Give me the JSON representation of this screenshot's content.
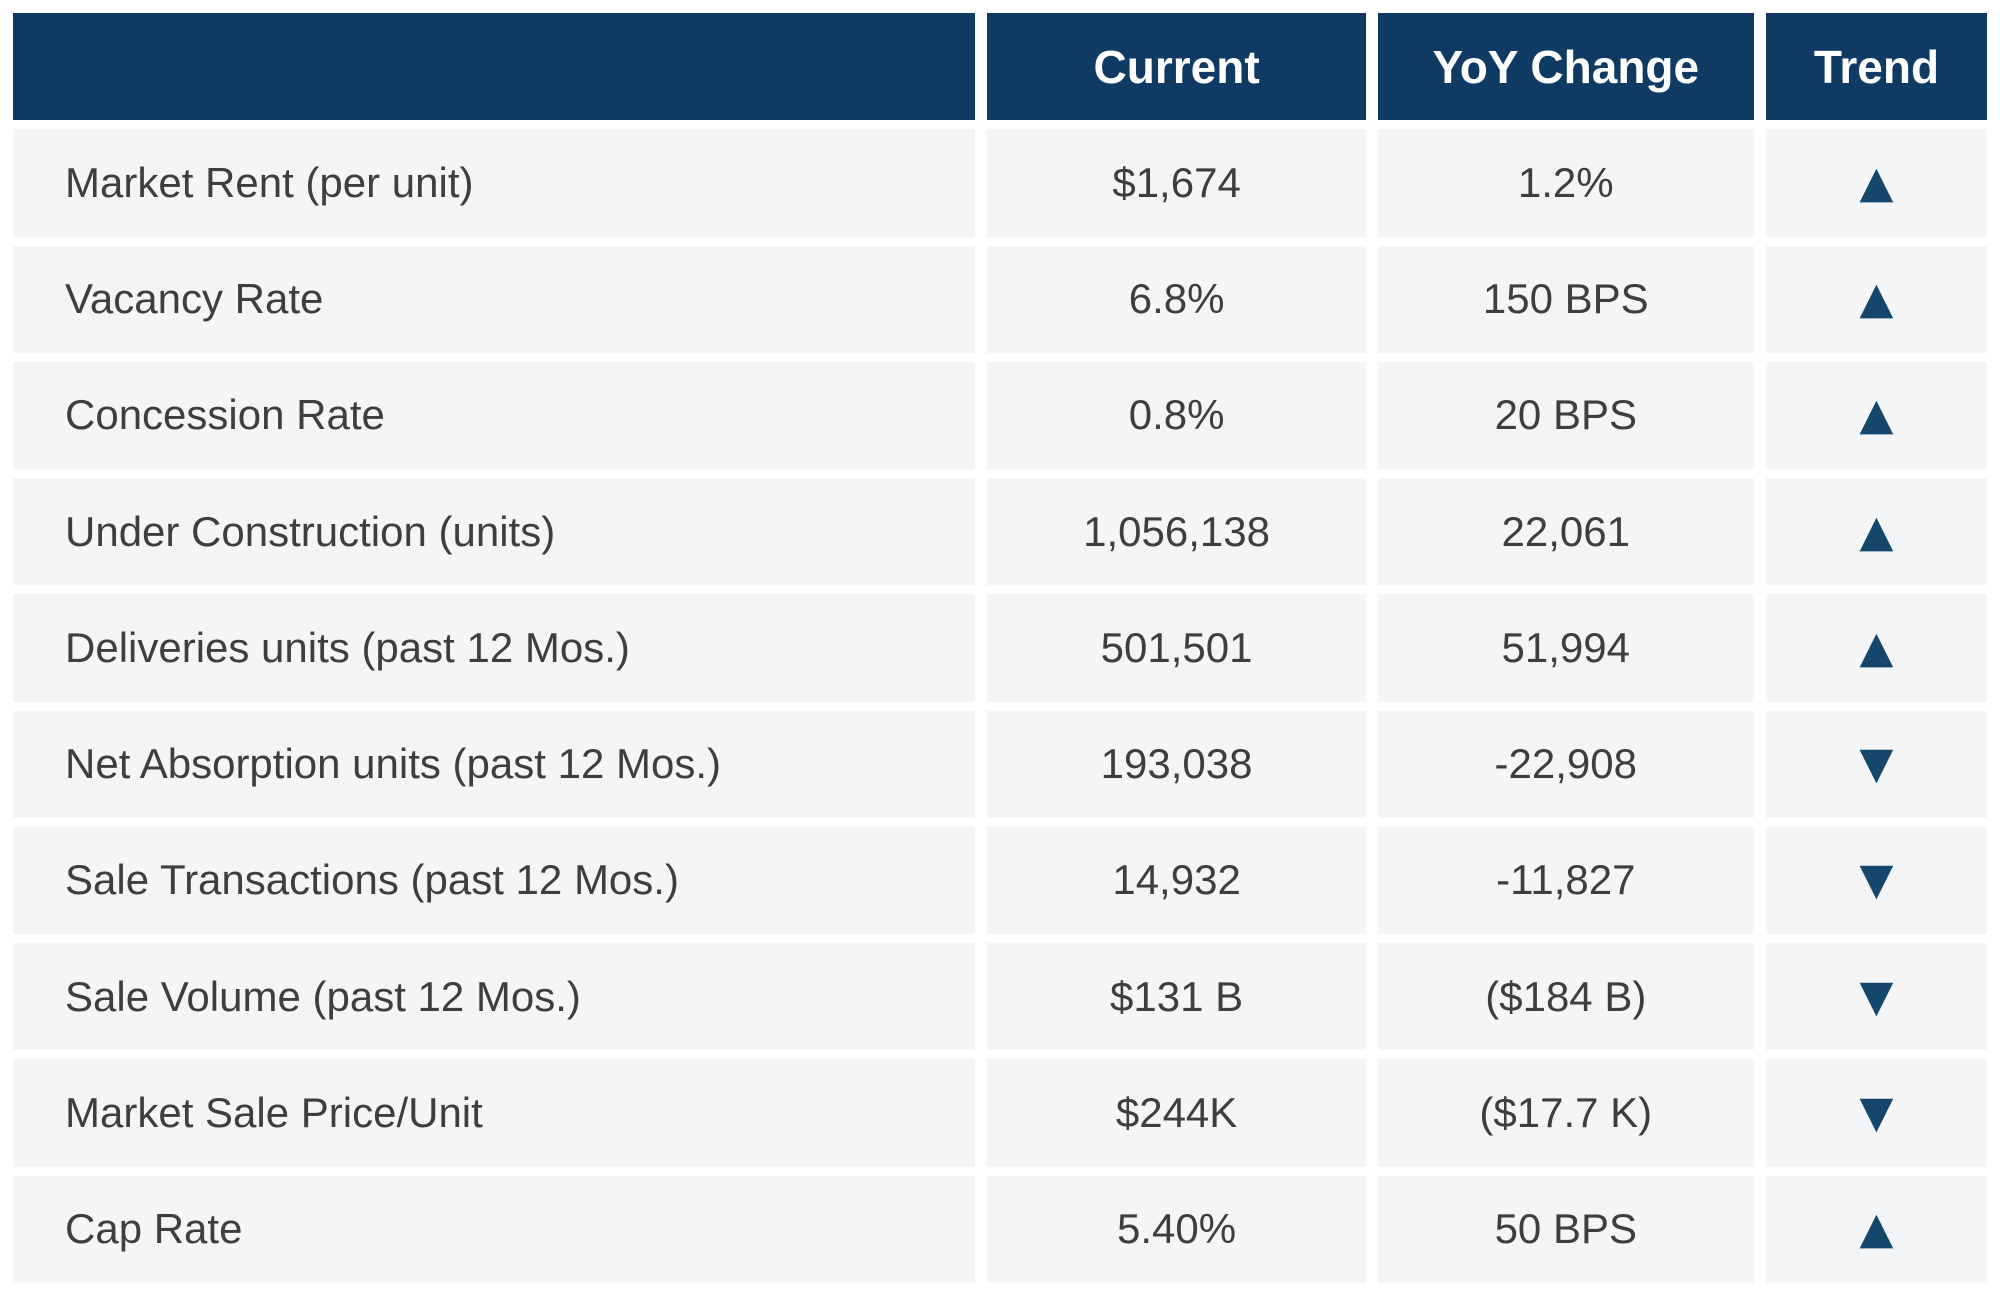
{
  "chart_data": {
    "type": "table",
    "columns": {
      "metric": "",
      "current": "Current",
      "yoy": "YoY Change",
      "trend": "Trend"
    },
    "rows": [
      {
        "label": "Market Rent (per unit)",
        "current": "$1,674",
        "yoy": "1.2%",
        "trend": "up",
        "trend_icon": "▲"
      },
      {
        "label": "Vacancy Rate",
        "current": "6.8%",
        "yoy": "150 BPS",
        "trend": "up",
        "trend_icon": "▲"
      },
      {
        "label": "Concession Rate",
        "current": "0.8%",
        "yoy": "20 BPS",
        "trend": "up",
        "trend_icon": "▲"
      },
      {
        "label": "Under Construction (units)",
        "current": "1,056,138",
        "yoy": "22,061",
        "trend": "up",
        "trend_icon": "▲"
      },
      {
        "label": "Deliveries units (past 12 Mos.)",
        "current": "501,501",
        "yoy": "51,994",
        "trend": "up",
        "trend_icon": "▲"
      },
      {
        "label": "Net Absorption units (past 12 Mos.)",
        "current": "193,038",
        "yoy": "-22,908",
        "trend": "down",
        "trend_icon": "▼"
      },
      {
        "label": "Sale Transactions (past 12 Mos.)",
        "current": "14,932",
        "yoy": "-11,827",
        "trend": "down",
        "trend_icon": "▼"
      },
      {
        "label": "Sale Volume (past 12 Mos.)",
        "current": "$131 B",
        "yoy": "($184 B)",
        "trend": "down",
        "trend_icon": "▼"
      },
      {
        "label": "Market Sale Price/Unit",
        "current": "$244K",
        "yoy": "($17.7 K)",
        "trend": "down",
        "trend_icon": "▼"
      },
      {
        "label": "Cap Rate",
        "current": "5.40%",
        "yoy": "50 BPS",
        "trend": "up",
        "trend_icon": "▲"
      }
    ]
  },
  "colors": {
    "header_bg": "#0E3A63",
    "header_text": "#FFFFFF",
    "row_bg": "#F4F5F7",
    "body_text": "#3E3E40",
    "trend_triangle": "#15476C",
    "gap": "#FFFFFF"
  }
}
